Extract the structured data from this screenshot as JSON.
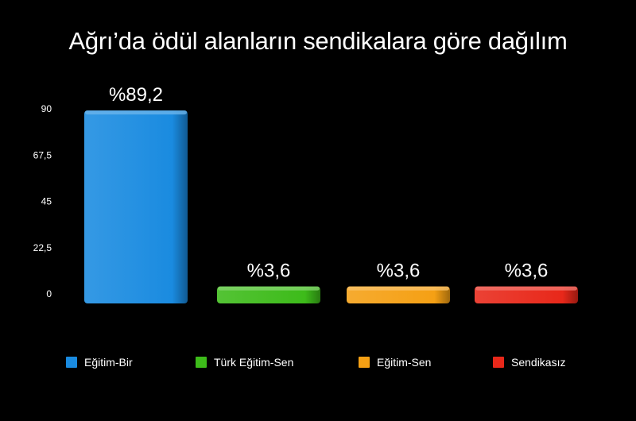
{
  "chart_data": {
    "type": "bar",
    "title": "Ağrı’da ödül alanların sendikalara göre dağılım",
    "categories": [
      "Eğitim-Bir",
      "Türk Eğitim-Sen",
      "Eğitim-Sen",
      "Sendikasız"
    ],
    "values": [
      89.2,
      3.6,
      3.6,
      3.6
    ],
    "data_labels": [
      "%89,2",
      "%3,6",
      "%3,6",
      "%3,6"
    ],
    "colors": [
      "#1a8be0",
      "#3dbb1a",
      "#f5a014",
      "#e8281a"
    ],
    "ylim": [
      0,
      90
    ],
    "yticks": [
      0,
      22.5,
      45,
      67.5,
      90
    ],
    "ytick_labels": [
      "0",
      "22,5",
      "45",
      "67,5",
      "90"
    ],
    "grid": false,
    "legend_position": "bottom",
    "xlabel": "",
    "ylabel": ""
  }
}
